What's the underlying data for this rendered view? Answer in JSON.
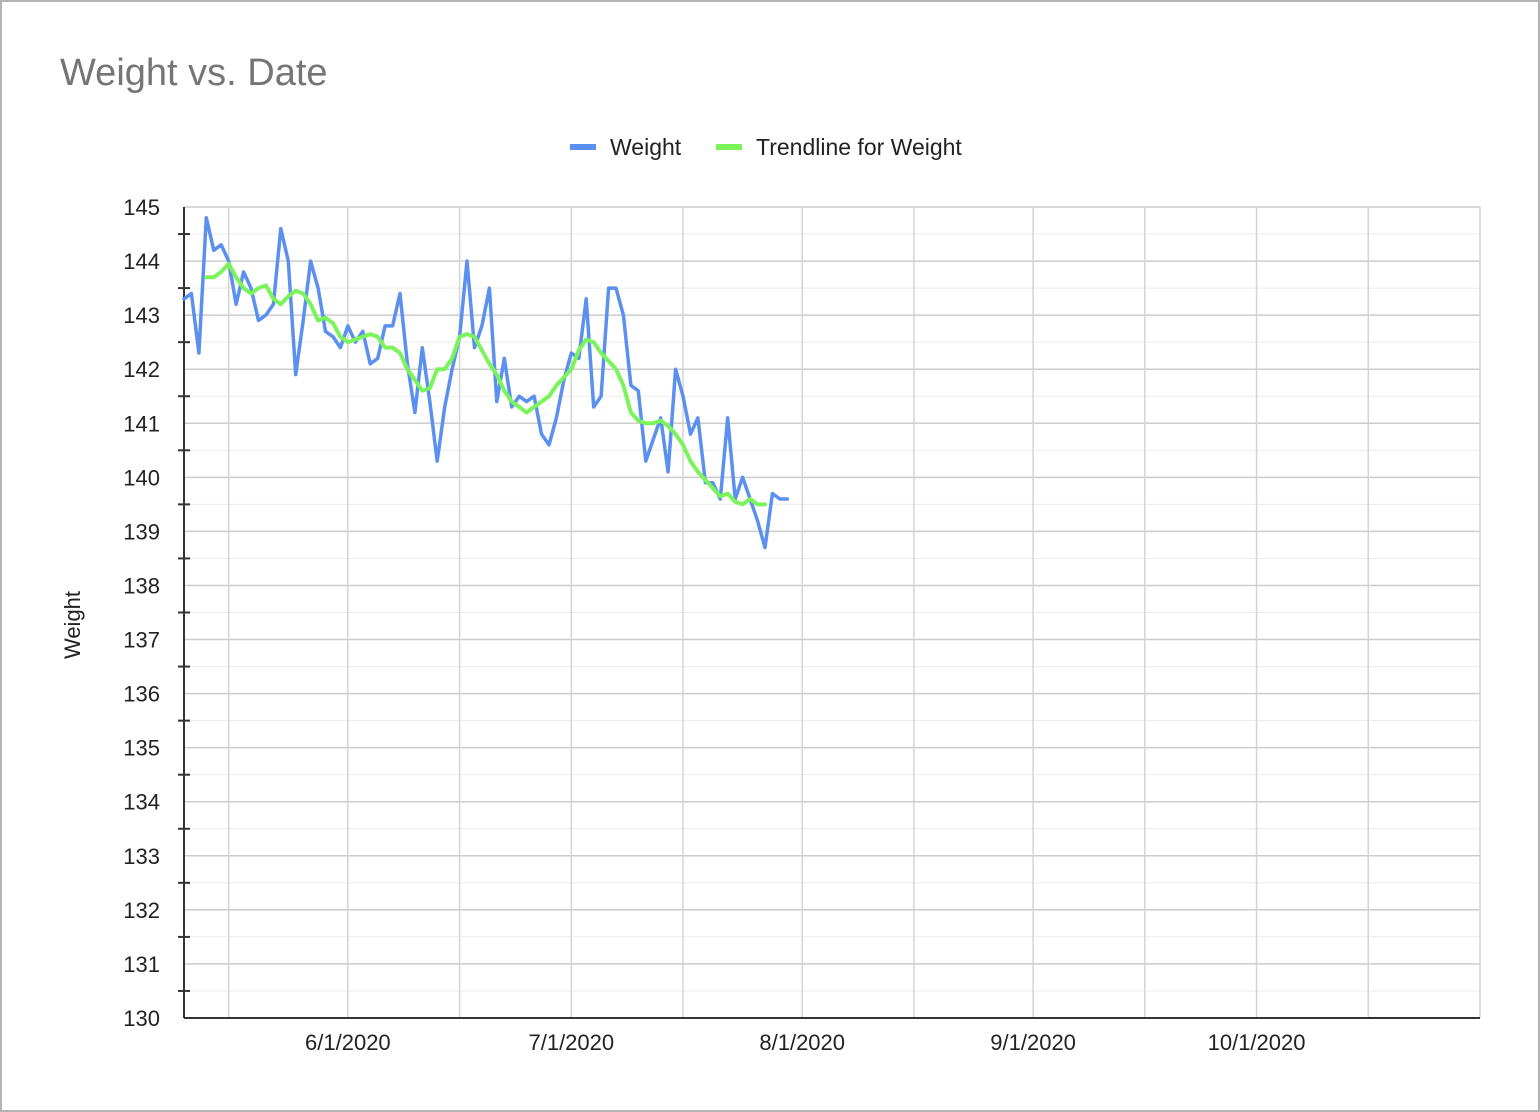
{
  "chart_data": {
    "type": "line",
    "title": "Weight vs. Date",
    "xlabel": "",
    "ylabel": "Weight",
    "ylim": [
      130,
      145
    ],
    "yticks": [
      "130",
      "131",
      "132",
      "133",
      "134",
      "135",
      "136",
      "137",
      "138",
      "139",
      "140",
      "141",
      "142",
      "143",
      "144",
      "145"
    ],
    "xlim": [
      "2020-05-10",
      "2020-10-31"
    ],
    "xtick_labels": [
      {
        "date": "2020-06-01",
        "label": "6/1/2020"
      },
      {
        "date": "2020-07-01",
        "label": "7/1/2020"
      },
      {
        "date": "2020-08-01",
        "label": "8/1/2020"
      },
      {
        "date": "2020-09-01",
        "label": "9/1/2020"
      },
      {
        "date": "2020-10-01",
        "label": "10/1/2020"
      }
    ],
    "x_gridlines": [
      "2020-05-16",
      "2020-06-01",
      "2020-06-16",
      "2020-07-01",
      "2020-07-16",
      "2020-08-01",
      "2020-08-16",
      "2020-09-01",
      "2020-09-16",
      "2020-10-01",
      "2020-10-16",
      "2020-10-31"
    ],
    "grid": true,
    "legend_position": "top",
    "series": [
      {
        "name": "Weight",
        "color": "#5b8ff0",
        "x": [
          "2020-05-10",
          "2020-05-11",
          "2020-05-12",
          "2020-05-13",
          "2020-05-14",
          "2020-05-15",
          "2020-05-16",
          "2020-05-17",
          "2020-05-18",
          "2020-05-19",
          "2020-05-20",
          "2020-05-21",
          "2020-05-22",
          "2020-05-23",
          "2020-05-24",
          "2020-05-25",
          "2020-05-26",
          "2020-05-27",
          "2020-05-28",
          "2020-05-29",
          "2020-05-30",
          "2020-05-31",
          "2020-06-01",
          "2020-06-02",
          "2020-06-03",
          "2020-06-04",
          "2020-06-05",
          "2020-06-06",
          "2020-06-07",
          "2020-06-08",
          "2020-06-09",
          "2020-06-10",
          "2020-06-11",
          "2020-06-12",
          "2020-06-13",
          "2020-06-14",
          "2020-06-15",
          "2020-06-16",
          "2020-06-17",
          "2020-06-18",
          "2020-06-19",
          "2020-06-20",
          "2020-06-21",
          "2020-06-22",
          "2020-06-23",
          "2020-06-24",
          "2020-06-25",
          "2020-06-26",
          "2020-06-27",
          "2020-06-28",
          "2020-06-29",
          "2020-06-30",
          "2020-07-01",
          "2020-07-02",
          "2020-07-03",
          "2020-07-04",
          "2020-07-05",
          "2020-07-06",
          "2020-07-07",
          "2020-07-08",
          "2020-07-09",
          "2020-07-10",
          "2020-07-11",
          "2020-07-12",
          "2020-07-13",
          "2020-07-14",
          "2020-07-15",
          "2020-07-16",
          "2020-07-17",
          "2020-07-18",
          "2020-07-19",
          "2020-07-20",
          "2020-07-21",
          "2020-07-22",
          "2020-07-23",
          "2020-07-24",
          "2020-07-25",
          "2020-07-26",
          "2020-07-27",
          "2020-07-28",
          "2020-07-29",
          "2020-07-30"
        ],
        "y": [
          143.3,
          143.4,
          142.3,
          144.8,
          144.2,
          144.3,
          144.0,
          143.2,
          143.8,
          143.5,
          142.9,
          143.0,
          143.2,
          144.6,
          144.0,
          141.9,
          142.9,
          144.0,
          143.5,
          142.7,
          142.6,
          142.4,
          142.8,
          142.5,
          142.7,
          142.1,
          142.2,
          142.8,
          142.8,
          143.4,
          142.1,
          141.2,
          142.4,
          141.4,
          140.3,
          141.3,
          142.0,
          142.6,
          144.0,
          142.4,
          142.8,
          143.5,
          141.4,
          142.2,
          141.3,
          141.5,
          141.4,
          141.5,
          140.8,
          140.6,
          141.1,
          141.8,
          142.3,
          142.2,
          143.3,
          141.3,
          141.5,
          143.5,
          143.5,
          143.0,
          141.7,
          141.6,
          140.3,
          140.7,
          141.1,
          140.1,
          142.0,
          141.5,
          140.8,
          141.1,
          139.9,
          139.9,
          139.6,
          141.1,
          139.6,
          140.0,
          139.6,
          139.2,
          138.7,
          139.7,
          139.6,
          139.6
        ]
      },
      {
        "name": "Trendline for Weight",
        "color": "#7bf35a",
        "x": [
          "2020-05-13",
          "2020-05-14",
          "2020-05-15",
          "2020-05-16",
          "2020-05-17",
          "2020-05-18",
          "2020-05-19",
          "2020-05-20",
          "2020-05-21",
          "2020-05-22",
          "2020-05-23",
          "2020-05-24",
          "2020-05-25",
          "2020-05-26",
          "2020-05-27",
          "2020-05-28",
          "2020-05-29",
          "2020-05-30",
          "2020-05-31",
          "2020-06-01",
          "2020-06-02",
          "2020-06-03",
          "2020-06-04",
          "2020-06-05",
          "2020-06-06",
          "2020-06-07",
          "2020-06-08",
          "2020-06-09",
          "2020-06-10",
          "2020-06-11",
          "2020-06-12",
          "2020-06-13",
          "2020-06-14",
          "2020-06-15",
          "2020-06-16",
          "2020-06-17",
          "2020-06-18",
          "2020-06-19",
          "2020-06-20",
          "2020-06-21",
          "2020-06-22",
          "2020-06-23",
          "2020-06-24",
          "2020-06-25",
          "2020-06-26",
          "2020-06-27",
          "2020-06-28",
          "2020-06-29",
          "2020-06-30",
          "2020-07-01",
          "2020-07-02",
          "2020-07-03",
          "2020-07-04",
          "2020-07-05",
          "2020-07-06",
          "2020-07-07",
          "2020-07-08",
          "2020-07-09",
          "2020-07-10",
          "2020-07-11",
          "2020-07-12",
          "2020-07-13",
          "2020-07-14",
          "2020-07-15",
          "2020-07-16",
          "2020-07-17",
          "2020-07-18",
          "2020-07-19",
          "2020-07-20",
          "2020-07-21",
          "2020-07-22",
          "2020-07-23",
          "2020-07-24",
          "2020-07-25",
          "2020-07-26",
          "2020-07-27"
        ],
        "y": [
          143.7,
          143.7,
          143.8,
          143.95,
          143.7,
          143.5,
          143.4,
          143.5,
          143.55,
          143.3,
          143.2,
          143.35,
          143.45,
          143.4,
          143.2,
          142.9,
          142.95,
          142.85,
          142.6,
          142.5,
          142.55,
          142.6,
          142.65,
          142.6,
          142.4,
          142.4,
          142.3,
          142.0,
          141.8,
          141.6,
          141.65,
          142.0,
          142.0,
          142.2,
          142.6,
          142.65,
          142.6,
          142.35,
          142.1,
          141.9,
          141.6,
          141.4,
          141.3,
          141.2,
          141.3,
          141.4,
          141.5,
          141.7,
          141.85,
          142.0,
          142.35,
          142.55,
          142.5,
          142.3,
          142.15,
          142.0,
          141.7,
          141.2,
          141.05,
          141.0,
          141.0,
          141.05,
          140.95,
          140.8,
          140.6,
          140.3,
          140.1,
          139.95,
          139.8,
          139.65,
          139.7,
          139.55,
          139.5,
          139.6,
          139.5,
          139.5
        ]
      }
    ]
  }
}
